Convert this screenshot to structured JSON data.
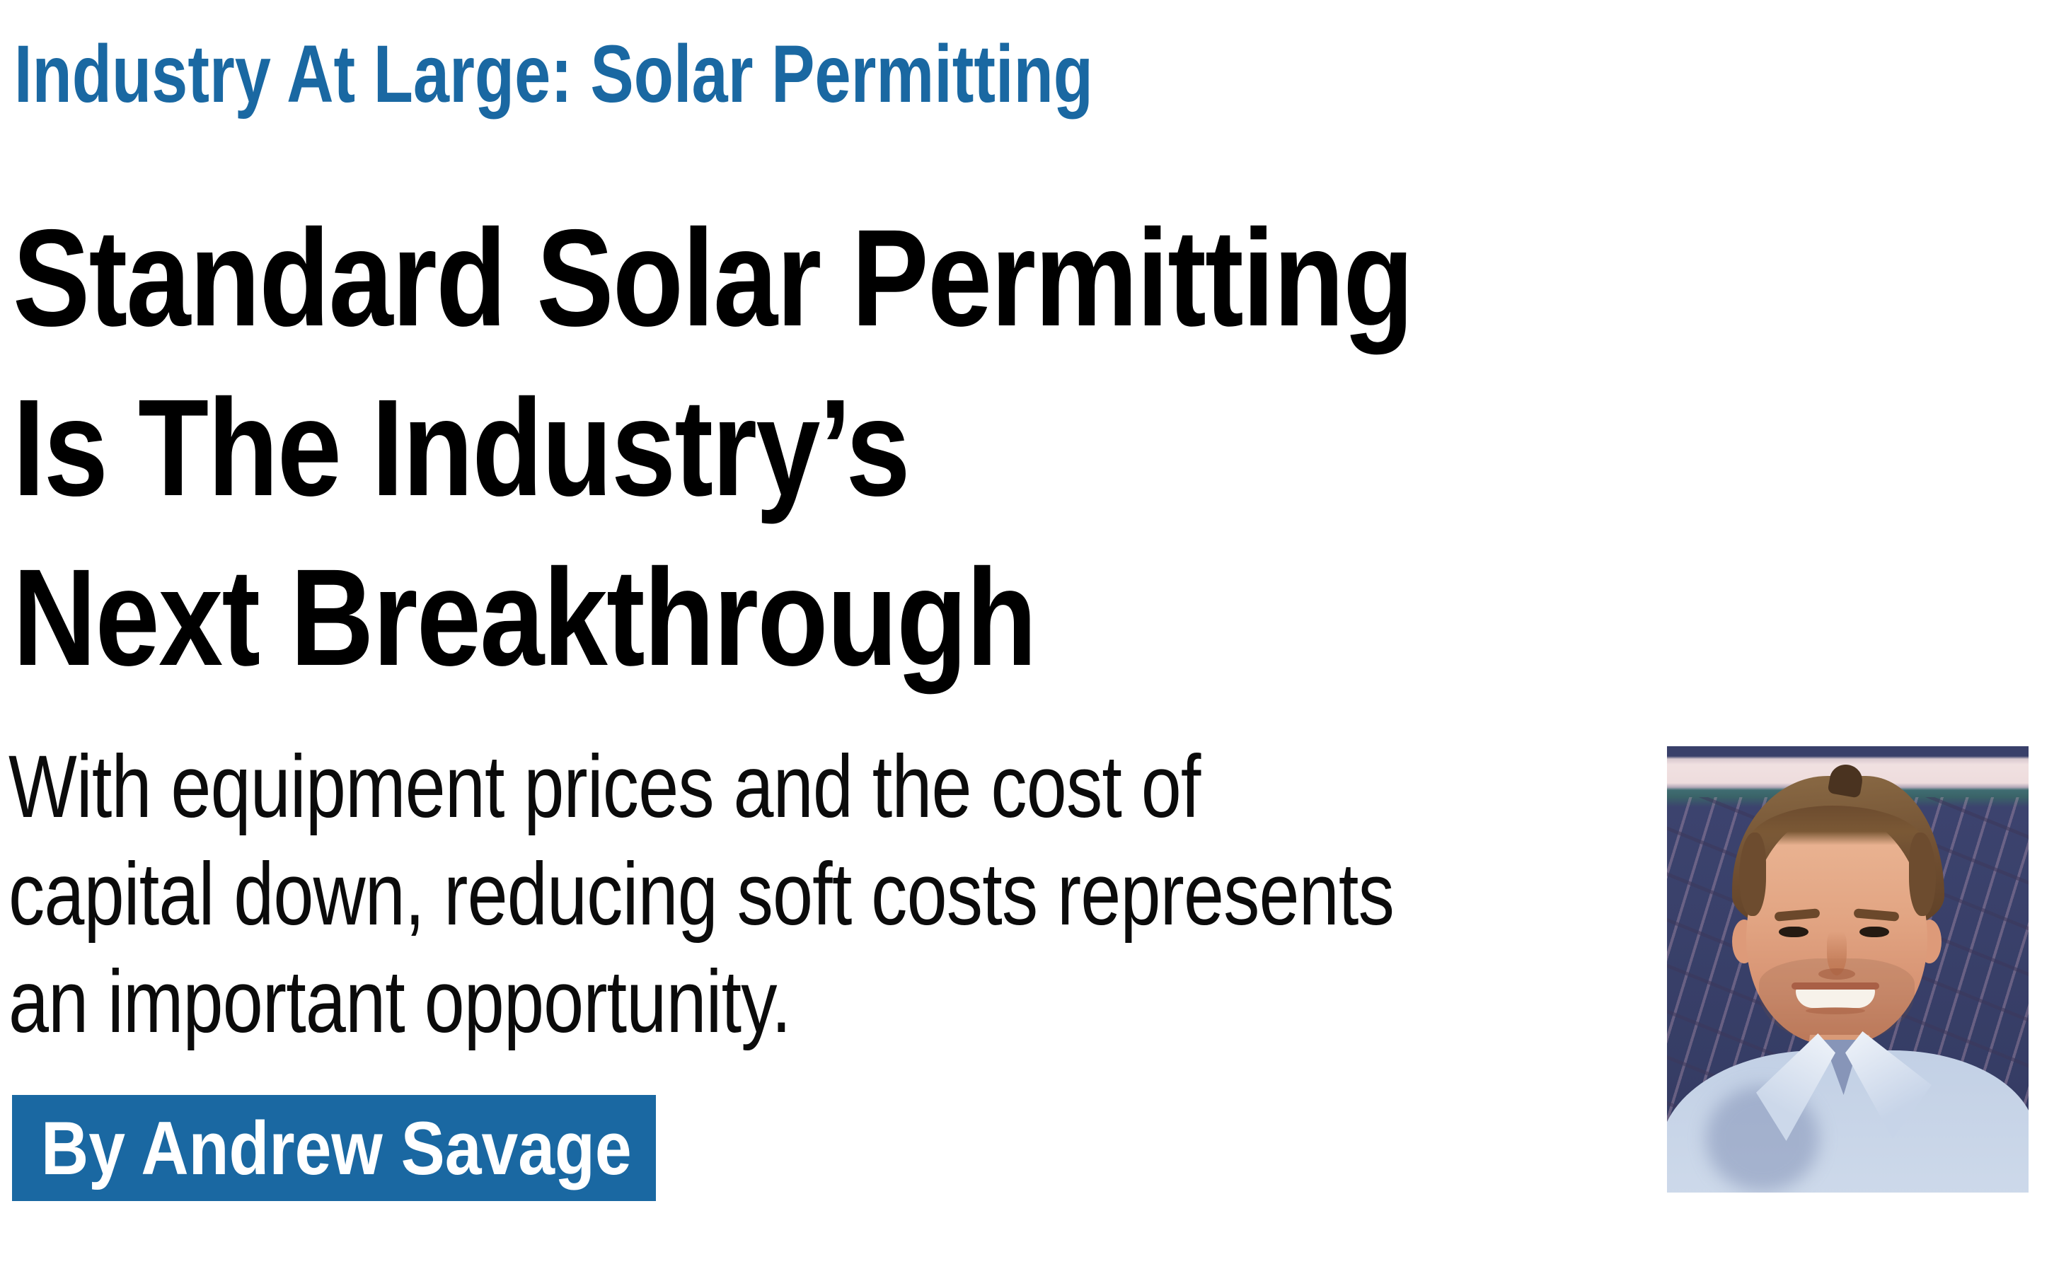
{
  "colors": {
    "accent_blue": "#1a68a2",
    "headline_text": "#000000",
    "deck_text": "#0b0b0b",
    "byline_text": "#ffffff"
  },
  "kicker": {
    "text": "Industry At Large: Solar Permitting"
  },
  "headline": {
    "lines": [
      "Standard Solar Permitting",
      "Is The Industry’s",
      "Next Breakthrough"
    ]
  },
  "deck": {
    "lines": [
      "With equipment prices and the cost of",
      "capital down, reducing soft costs represents",
      "an important opportunity."
    ]
  },
  "byline": {
    "label": "By Andrew Savage"
  },
  "photo": {
    "description": "Headshot of a smiling man with short brown hair wearing a light blue collared shirt, standing in front of dark blue solar panels with a light horizontal rail behind him"
  }
}
